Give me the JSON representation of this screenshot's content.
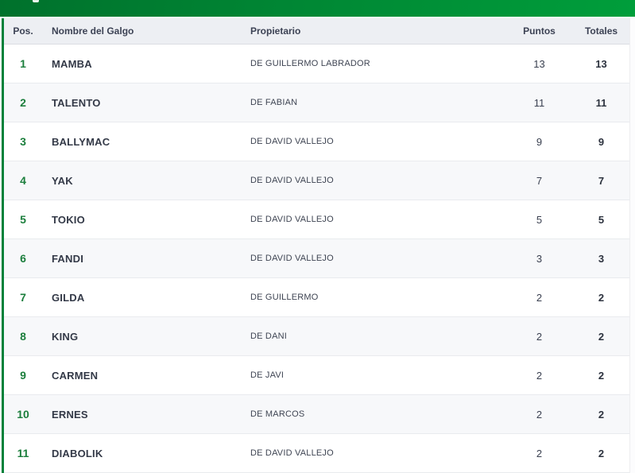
{
  "navbar": {
    "background_gradient": [
      "#00712c",
      "#008433",
      "#009e3b"
    ],
    "logo_remnant_color": "#ffffff"
  },
  "table": {
    "accent_color": "#00813a",
    "position_number_color": "#1b7e3c",
    "header_background": "#edeff3",
    "alt_row_background": "#f7f8fa",
    "columns": [
      {
        "key": "pos",
        "label": "Pos."
      },
      {
        "key": "name",
        "label": "Nombre del Galgo"
      },
      {
        "key": "owner",
        "label": "Propietario"
      },
      {
        "key": "puntos",
        "label": "Puntos"
      },
      {
        "key": "totales",
        "label": "Totales"
      }
    ],
    "rows": [
      {
        "pos": "1",
        "name": "MAMBA",
        "owner": "DE GUILLERMO LABRADOR",
        "puntos": "13",
        "totales": "13"
      },
      {
        "pos": "2",
        "name": "TALENTO",
        "owner": "DE FABIAN",
        "puntos": "11",
        "totales": "11"
      },
      {
        "pos": "3",
        "name": "BALLYMAC",
        "owner": "DE DAVID VALLEJO",
        "puntos": "9",
        "totales": "9"
      },
      {
        "pos": "4",
        "name": "YAK",
        "owner": "DE DAVID VALLEJO",
        "puntos": "7",
        "totales": "7"
      },
      {
        "pos": "5",
        "name": "TOKIO",
        "owner": "DE DAVID VALLEJO",
        "puntos": "5",
        "totales": "5"
      },
      {
        "pos": "6",
        "name": "FANDI",
        "owner": "DE DAVID VALLEJO",
        "puntos": "3",
        "totales": "3"
      },
      {
        "pos": "7",
        "name": "GILDA",
        "owner": "DE GUILLERMO",
        "puntos": "2",
        "totales": "2"
      },
      {
        "pos": "8",
        "name": "KING",
        "owner": "DE DANI",
        "puntos": "2",
        "totales": "2"
      },
      {
        "pos": "9",
        "name": "CARMEN",
        "owner": "DE JAVI",
        "puntos": "2",
        "totales": "2"
      },
      {
        "pos": "10",
        "name": "ERNES",
        "owner": "DE MARCOS",
        "puntos": "2",
        "totales": "2"
      },
      {
        "pos": "11",
        "name": "DIABOLIK",
        "owner": "DE DAVID VALLEJO",
        "puntos": "2",
        "totales": "2"
      }
    ]
  }
}
